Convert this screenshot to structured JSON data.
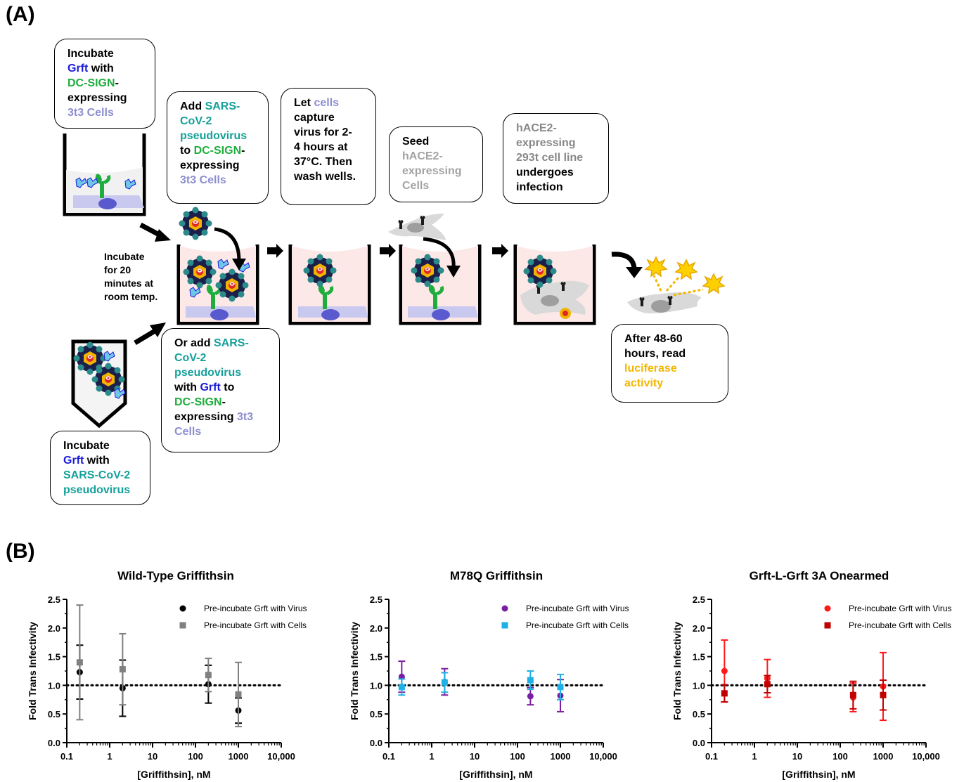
{
  "panel_a": {
    "label": "(A)",
    "box1": [
      "Incubate",
      "Grft",
      "with",
      "DC-SIGN",
      "-",
      "expressing",
      "3t3 Cells"
    ],
    "box2": [
      "Add",
      "SARS-",
      "CoV-2",
      "pseudovirus",
      "to",
      "DC-SIGN",
      "-",
      "expressing",
      "3t3 Cells"
    ],
    "box3": [
      "Let",
      "cells",
      "capture",
      "virus for 2-",
      "4 hours at",
      "37°C. Then",
      "wash wells."
    ],
    "box4": [
      "Seed",
      "hACE2-",
      "expressing",
      "Cells"
    ],
    "box5": [
      "hACE2-",
      "expressing",
      "293t cell line",
      "undergoes",
      "infection"
    ],
    "box6": [
      "Or add",
      "SARS-",
      "CoV-2",
      "pseudovirus",
      "with",
      "Grft",
      "to",
      "DC-SIGN",
      "-",
      "expressing",
      "3t3",
      "Cells"
    ],
    "box7": [
      "Incubate",
      "Grft",
      "with",
      "SARS-CoV-2",
      "pseudovirus"
    ],
    "box8": [
      "After 48-60",
      "hours, read",
      "luciferase",
      "activity"
    ],
    "note_incubate": [
      "Incubate",
      "for 20",
      "minutes at",
      "room temp."
    ],
    "colors": {
      "grft": "#1a1adc",
      "dcsign": "#1fae3d",
      "cells": "#8c8ecf",
      "virus": "#15a09a",
      "hace2": "#a3a3a3",
      "luciferase": "#f2b600",
      "well_fill": "#fde8e8",
      "cell_pad": "#c9c9ef"
    }
  },
  "panel_b": {
    "label": "(B)"
  },
  "chart_data": [
    {
      "type": "scatter",
      "title": "Wild-Type Griffithsin",
      "xlabel": "[Griffithsin], nM",
      "ylabel": "Fold Trans Infectivity",
      "xscale": "log",
      "xlim": [
        0.1,
        10000
      ],
      "ylim": [
        0.0,
        2.5
      ],
      "xticks": [
        "0.1",
        "1",
        "10",
        "100",
        "1000",
        "10,000"
      ],
      "yticks": [
        "0.0",
        "0.5",
        "1.0",
        "1.5",
        "2.0",
        "2.5"
      ],
      "reference_line": 1.0,
      "legend_position": "top-right",
      "series": [
        {
          "name": "Pre-incubate Grft with Virus",
          "marker": "circle",
          "color": "#000000",
          "points": [
            {
              "x": 0.2,
              "y": 1.23,
              "err": 0.47
            },
            {
              "x": 2,
              "y": 0.95,
              "err": 0.49
            },
            {
              "x": 200,
              "y": 1.02,
              "err": 0.33
            },
            {
              "x": 1000,
              "y": 0.56,
              "err": 0.22
            }
          ]
        },
        {
          "name": "Pre-incubate Grft with Cells",
          "marker": "square",
          "color": "#808080",
          "points": [
            {
              "x": 0.2,
              "y": 1.4,
              "err": 1.0
            },
            {
              "x": 2,
              "y": 1.28,
              "err": 0.62
            },
            {
              "x": 200,
              "y": 1.18,
              "err": 0.29
            },
            {
              "x": 1000,
              "y": 0.84,
              "err": 0.56
            }
          ]
        }
      ]
    },
    {
      "type": "scatter",
      "title": "M78Q Griffithsin",
      "xlabel": "[Griffithsin], nM",
      "ylabel": "Fold Trans  Infectivity",
      "xscale": "log",
      "xlim": [
        0.1,
        10000
      ],
      "ylim": [
        0.0,
        2.5
      ],
      "xticks": [
        "0.1",
        "1",
        "10",
        "100",
        "1000",
        "10,000"
      ],
      "yticks": [
        "0.0",
        "0.5",
        "1.0",
        "1.5",
        "2.0",
        "2.5"
      ],
      "reference_line": 1.0,
      "legend_position": "top-right",
      "series": [
        {
          "name": "Pre-incubate Grft with Virus",
          "marker": "circle",
          "color": "#7b1fa2",
          "points": [
            {
              "x": 0.2,
              "y": 1.15,
              "err": 0.27
            },
            {
              "x": 2,
              "y": 1.06,
              "err": 0.23
            },
            {
              "x": 200,
              "y": 0.81,
              "err": 0.15
            },
            {
              "x": 1000,
              "y": 0.82,
              "err": 0.28
            }
          ]
        },
        {
          "name": "Pre-incubate Grft with Cells",
          "marker": "square",
          "color": "#1fb0e6",
          "points": [
            {
              "x": 0.2,
              "y": 0.97,
              "err": 0.14
            },
            {
              "x": 2,
              "y": 1.05,
              "err": 0.17
            },
            {
              "x": 200,
              "y": 1.09,
              "err": 0.16
            },
            {
              "x": 1000,
              "y": 0.97,
              "err": 0.22
            }
          ]
        }
      ]
    },
    {
      "type": "scatter",
      "title": "Grft-L-Grft 3A Onearmed",
      "xlabel": "[Griffithsin], nM",
      "ylabel": "Fold Trans Infectivity",
      "xscale": "log",
      "xlim": [
        0.1,
        10000
      ],
      "ylim": [
        0.0,
        2.5
      ],
      "xticks": [
        "0.1",
        "1",
        "10",
        "100",
        "1000",
        "10,000"
      ],
      "yticks": [
        "0.0",
        "0.5",
        "1.0",
        "1.5",
        "2.0",
        "2.5"
      ],
      "reference_line": 1.0,
      "legend_position": "top-right",
      "series": [
        {
          "name": "Pre-incubate Grft with Virus",
          "marker": "circle",
          "color": "#ff1a1a",
          "points": [
            {
              "x": 0.2,
              "y": 1.25,
              "err": 0.54
            },
            {
              "x": 2,
              "y": 1.12,
              "err": 0.33
            },
            {
              "x": 200,
              "y": 0.79,
              "err": 0.25
            },
            {
              "x": 1000,
              "y": 0.98,
              "err": 0.59
            }
          ]
        },
        {
          "name": "Pre-incubate Grft with Cells",
          "marker": "square",
          "color": "#c00000",
          "points": [
            {
              "x": 0.2,
              "y": 0.86,
              "err": 0.15
            },
            {
              "x": 2,
              "y": 1.02,
              "err": 0.15
            },
            {
              "x": 200,
              "y": 0.83,
              "err": 0.24
            },
            {
              "x": 1000,
              "y": 0.83,
              "err": 0.26
            }
          ]
        }
      ]
    }
  ]
}
